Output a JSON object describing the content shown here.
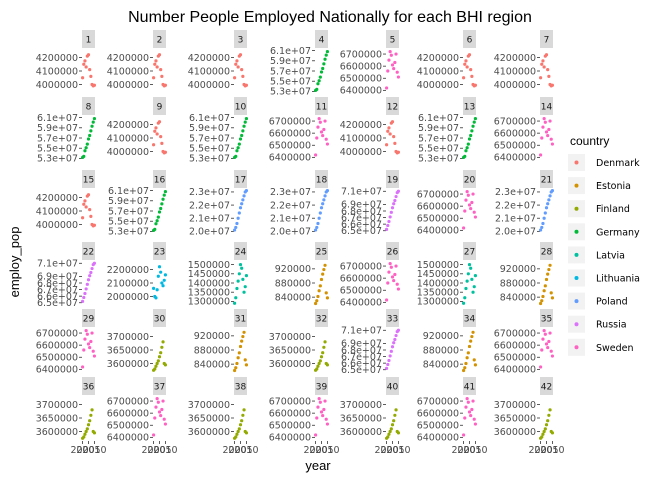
{
  "chart_data": {
    "type": "scatter",
    "title": "Number People Employed Nationally for each BHI region",
    "xlabel": "year",
    "ylabel": "employ_pop",
    "x_tick_labels": [
      "2000",
      "2005",
      "2010"
    ],
    "legend": {
      "title": "country",
      "placement": "right",
      "entries": [
        {
          "name": "Denmark",
          "color": "#F8766D"
        },
        {
          "name": "Estonia",
          "color": "#D39200"
        },
        {
          "name": "Finland",
          "color": "#93AA00"
        },
        {
          "name": "Germany",
          "color": "#00BA38"
        },
        {
          "name": "Latvia",
          "color": "#00C19F"
        },
        {
          "name": "Lithuania",
          "color": "#00B9E3"
        },
        {
          "name": "Poland",
          "color": "#619CFF"
        },
        {
          "name": "Russia",
          "color": "#DB72FB"
        },
        {
          "name": "Sweden",
          "color": "#FF61C3"
        }
      ]
    },
    "tick_sets": {
      "Denmark": {
        "ticks": [
          "4200000",
          "4100000",
          "4000000"
        ],
        "range": [
          3930000,
          4270000
        ],
        "series": [
          4050000,
          4150000,
          4175000,
          4130000,
          4210000,
          4220000,
          4110000,
          4060000,
          4000000,
          3990000,
          3995000
        ]
      },
      "Sweden": {
        "ticks": [
          "6700000",
          "6600000",
          "6500000",
          "6400000"
        ],
        "range": [
          6370000,
          6750000
        ],
        "series": [
          6420000,
          6560000,
          6650000,
          6720000,
          6690000,
          6610000,
          6580000,
          6630000,
          6700000,
          6550000,
          6510000
        ]
      },
      "Germany": {
        "ticks": [
          "6.1e+07",
          "5.9e+07",
          "5.7e+07",
          "5.5e+07",
          "5.3e+07"
        ],
        "range": [
          52500000,
          61500000
        ],
        "series": [
          53200000,
          53400000,
          54500000,
          55100000,
          55800000,
          56800000,
          57500000,
          58400000,
          59300000,
          60100000,
          60800000
        ]
      },
      "Poland": {
        "ticks": [
          "2.3e+07",
          "2.2e+07",
          "2.1e+07",
          "2.0e+07"
        ],
        "range": [
          19800000,
          23300000
        ],
        "series": [
          20100000,
          20300000,
          20600000,
          21000000,
          21400000,
          21800000,
          22100000,
          22400000,
          22700000,
          23000000,
          23100000
        ]
      },
      "Russia": {
        "ticks": [
          "7.1e+07",
          "6.9e+07",
          "6.8e+07",
          "6.7e+07",
          "6.6e+07",
          "6.5e+07"
        ],
        "range": [
          64500000,
          71500000
        ],
        "series": [
          65200000,
          65800000,
          66400000,
          67100000,
          67800000,
          68500000,
          69100000,
          69600000,
          70200000,
          70800000,
          71000000
        ]
      },
      "Lithuania": {
        "ticks": [
          "2200000",
          "2100000",
          "2000000"
        ],
        "range": [
          1930000,
          2270000
        ],
        "series": [
          2060000,
          2000000,
          1990000,
          2050000,
          2150000,
          2220000,
          2180000,
          2100000,
          2080000,
          2120000,
          2160000
        ]
      },
      "Latvia": {
        "ticks": [
          "1500000",
          "1450000",
          "1400000",
          "1350000",
          "1300000"
        ],
        "range": [
          1275000,
          1525000
        ],
        "series": [
          1290000,
          1320000,
          1370000,
          1410000,
          1450000,
          1500000,
          1480000,
          1420000,
          1350000,
          1380000,
          1440000
        ]
      },
      "Estonia": {
        "ticks": [
          "920000",
          "880000",
          "840000"
        ],
        "range": [
          815000,
          945000
        ],
        "series": [
          822000,
          830000,
          842000,
          858000,
          872000,
          890000,
          905000,
          918000,
          930000,
          852000,
          838000
        ]
      },
      "Finland": {
        "ticks": [
          "3700000",
          "3650000",
          "3600000"
        ],
        "range": [
          3565000,
          3735000
        ],
        "series": [
          3575000,
          3580000,
          3590000,
          3600000,
          3610000,
          3625000,
          3640000,
          3660000,
          3680000,
          3600000,
          3595000
        ]
      }
    },
    "panels": [
      {
        "label": "1",
        "country": "Denmark"
      },
      {
        "label": "2",
        "country": "Denmark"
      },
      {
        "label": "3",
        "country": "Denmark"
      },
      {
        "label": "4",
        "country": "Germany"
      },
      {
        "label": "5",
        "country": "Sweden"
      },
      {
        "label": "6",
        "country": "Denmark"
      },
      {
        "label": "7",
        "country": "Denmark"
      },
      {
        "label": "8",
        "country": "Germany"
      },
      {
        "label": "9",
        "country": "Denmark"
      },
      {
        "label": "10",
        "country": "Germany"
      },
      {
        "label": "11",
        "country": "Sweden"
      },
      {
        "label": "12",
        "country": "Denmark"
      },
      {
        "label": "13",
        "country": "Germany"
      },
      {
        "label": "14",
        "country": "Sweden"
      },
      {
        "label": "15",
        "country": "Denmark"
      },
      {
        "label": "16",
        "country": "Germany"
      },
      {
        "label": "17",
        "country": "Poland"
      },
      {
        "label": "18",
        "country": "Poland"
      },
      {
        "label": "19",
        "country": "Russia"
      },
      {
        "label": "20",
        "country": "Sweden"
      },
      {
        "label": "21",
        "country": "Poland"
      },
      {
        "label": "22",
        "country": "Russia"
      },
      {
        "label": "23",
        "country": "Lithuania"
      },
      {
        "label": "24",
        "country": "Latvia"
      },
      {
        "label": "25",
        "country": "Estonia"
      },
      {
        "label": "26",
        "country": "Sweden"
      },
      {
        "label": "27",
        "country": "Latvia"
      },
      {
        "label": "28",
        "country": "Estonia"
      },
      {
        "label": "29",
        "country": "Sweden"
      },
      {
        "label": "30",
        "country": "Finland"
      },
      {
        "label": "31",
        "country": "Estonia"
      },
      {
        "label": "32",
        "country": "Finland"
      },
      {
        "label": "33",
        "country": "Russia"
      },
      {
        "label": "34",
        "country": "Estonia"
      },
      {
        "label": "35",
        "country": "Sweden"
      },
      {
        "label": "36",
        "country": "Finland"
      },
      {
        "label": "37",
        "country": "Sweden"
      },
      {
        "label": "38",
        "country": "Finland"
      },
      {
        "label": "39",
        "country": "Sweden"
      },
      {
        "label": "40",
        "country": "Finland"
      },
      {
        "label": "41",
        "country": "Sweden"
      },
      {
        "label": "42",
        "country": "Finland"
      }
    ]
  }
}
